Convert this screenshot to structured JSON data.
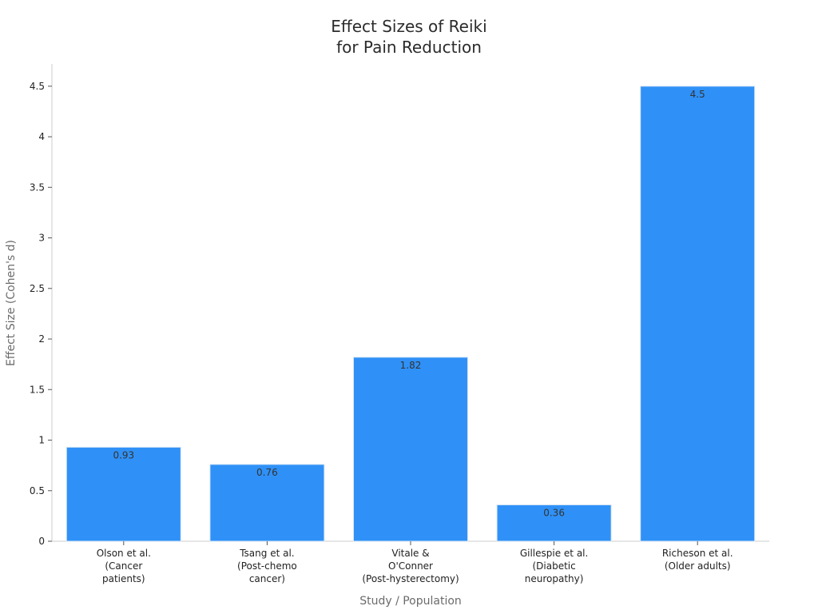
{
  "chart_data": {
    "type": "bar",
    "title": [
      "Effect Sizes of Reiki",
      "for Pain Reduction"
    ],
    "xlabel": "Study / Population",
    "ylabel": "Effect Size (Cohen's d)",
    "categories": [
      [
        "Olson et al.",
        "(Cancer",
        "patients)"
      ],
      [
        "Tsang et al.",
        "(Post-chemo",
        "cancer)"
      ],
      [
        "Vitale &",
        "O'Conner",
        "(Post-hysterectomy)"
      ],
      [
        "Gillespie et al.",
        "(Diabetic",
        "neuropathy)"
      ],
      [
        "Richeson et al.",
        "(Older adults)"
      ]
    ],
    "values": [
      0.93,
      0.76,
      1.82,
      0.36,
      4.5
    ],
    "data_labels": [
      "0.93",
      "0.76",
      "1.82",
      "0.36",
      "4.5"
    ],
    "ylim": [
      0,
      4.72
    ],
    "yticks": [
      0,
      0.5,
      1,
      1.5,
      2,
      2.5,
      3,
      3.5,
      4,
      4.5
    ],
    "ytick_labels": [
      "0",
      "0.5",
      "1",
      "1.5",
      "2",
      "2.5",
      "3",
      "3.5",
      "4",
      "4.5"
    ],
    "bar_color": "#2f91f7",
    "grid": false,
    "legend": "none"
  }
}
